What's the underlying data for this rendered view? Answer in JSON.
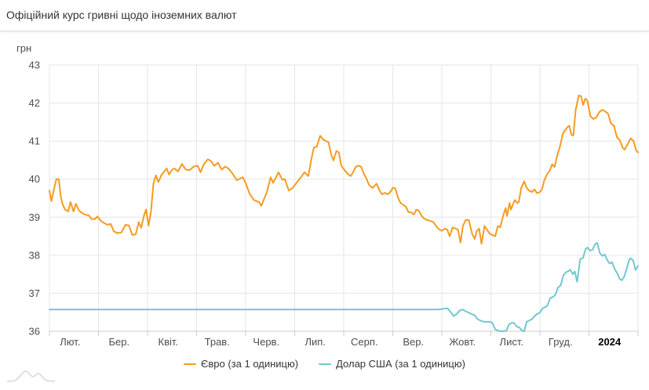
{
  "header": {
    "title": "Офіційний курс гривні щодо іноземних валют"
  },
  "chart_data": {
    "type": "line",
    "title": "Офіційний курс гривні щодо іноземних валют",
    "grid": true,
    "legend_position": "bottom-center",
    "y_axis": {
      "label": "грн",
      "min": 36,
      "max": 43,
      "tick_interval": 1,
      "ticks": [
        36,
        37,
        38,
        39,
        40,
        41,
        42,
        43
      ]
    },
    "x_axis": {
      "labels": [
        "Лют.",
        "Бер.",
        "Квіт.",
        "Трав.",
        "Черв.",
        "Лип.",
        "Серп.",
        "Вер.",
        "Жовт.",
        "Лист.",
        "Груд.",
        "2024"
      ],
      "bold_last": true,
      "x_unit": "months-from-february"
    },
    "series": [
      {
        "name": "Євро (за 1 одиницю)",
        "color": "#f59b22",
        "points": [
          [
            0,
            39.7
          ],
          [
            0.04,
            39.42
          ],
          [
            0.09,
            39.72
          ],
          [
            0.14,
            40.0
          ],
          [
            0.19,
            40.0
          ],
          [
            0.23,
            39.55
          ],
          [
            0.27,
            39.33
          ],
          [
            0.32,
            39.2
          ],
          [
            0.38,
            39.15
          ],
          [
            0.43,
            39.4
          ],
          [
            0.49,
            39.15
          ],
          [
            0.54,
            39.35
          ],
          [
            0.6,
            39.18
          ],
          [
            0.67,
            39.1
          ],
          [
            0.74,
            39.06
          ],
          [
            0.8,
            39.05
          ],
          [
            0.86,
            38.95
          ],
          [
            0.93,
            38.95
          ],
          [
            0.98,
            39.02
          ],
          [
            1.05,
            38.9
          ],
          [
            1.11,
            38.85
          ],
          [
            1.18,
            38.8
          ],
          [
            1.25,
            38.82
          ],
          [
            1.31,
            38.63
          ],
          [
            1.39,
            38.58
          ],
          [
            1.47,
            38.6
          ],
          [
            1.55,
            38.8
          ],
          [
            1.62,
            38.78
          ],
          [
            1.69,
            38.53
          ],
          [
            1.76,
            38.55
          ],
          [
            1.82,
            38.87
          ],
          [
            1.87,
            38.72
          ],
          [
            1.93,
            39.05
          ],
          [
            1.97,
            39.2
          ],
          [
            2.02,
            38.78
          ],
          [
            2.07,
            39.15
          ],
          [
            2.12,
            39.88
          ],
          [
            2.17,
            40.1
          ],
          [
            2.22,
            39.92
          ],
          [
            2.28,
            40.1
          ],
          [
            2.34,
            40.2
          ],
          [
            2.39,
            40.28
          ],
          [
            2.44,
            40.12
          ],
          [
            2.5,
            40.25
          ],
          [
            2.55,
            40.28
          ],
          [
            2.62,
            40.2
          ],
          [
            2.7,
            40.4
          ],
          [
            2.78,
            40.25
          ],
          [
            2.86,
            40.24
          ],
          [
            2.94,
            40.33
          ],
          [
            3.02,
            40.35
          ],
          [
            3.08,
            40.18
          ],
          [
            3.15,
            40.4
          ],
          [
            3.23,
            40.52
          ],
          [
            3.29,
            40.48
          ],
          [
            3.36,
            40.35
          ],
          [
            3.44,
            40.43
          ],
          [
            3.51,
            40.25
          ],
          [
            3.58,
            40.33
          ],
          [
            3.65,
            40.28
          ],
          [
            3.72,
            40.17
          ],
          [
            3.82,
            39.97
          ],
          [
            3.94,
            40.05
          ],
          [
            4.0,
            39.9
          ],
          [
            4.08,
            39.62
          ],
          [
            4.17,
            39.45
          ],
          [
            4.27,
            39.4
          ],
          [
            4.32,
            39.3
          ],
          [
            4.43,
            39.65
          ],
          [
            4.51,
            40.05
          ],
          [
            4.56,
            39.9
          ],
          [
            4.67,
            40.18
          ],
          [
            4.75,
            39.98
          ],
          [
            4.8,
            40.0
          ],
          [
            4.88,
            39.7
          ],
          [
            4.96,
            39.77
          ],
          [
            5.02,
            39.87
          ],
          [
            5.12,
            40.04
          ],
          [
            5.2,
            40.18
          ],
          [
            5.28,
            40.08
          ],
          [
            5.34,
            40.53
          ],
          [
            5.39,
            40.83
          ],
          [
            5.45,
            40.85
          ],
          [
            5.52,
            41.14
          ],
          [
            5.58,
            41.04
          ],
          [
            5.64,
            41.0
          ],
          [
            5.69,
            40.97
          ],
          [
            5.74,
            40.66
          ],
          [
            5.79,
            40.49
          ],
          [
            5.85,
            40.74
          ],
          [
            5.9,
            40.7
          ],
          [
            5.95,
            40.35
          ],
          [
            6.01,
            40.25
          ],
          [
            6.07,
            40.15
          ],
          [
            6.14,
            40.08
          ],
          [
            6.19,
            40.18
          ],
          [
            6.25,
            40.33
          ],
          [
            6.31,
            40.35
          ],
          [
            6.36,
            40.32
          ],
          [
            6.41,
            40.14
          ],
          [
            6.46,
            40.02
          ],
          [
            6.52,
            39.84
          ],
          [
            6.59,
            39.77
          ],
          [
            6.67,
            39.88
          ],
          [
            6.73,
            39.7
          ],
          [
            6.78,
            39.6
          ],
          [
            6.84,
            39.64
          ],
          [
            6.89,
            39.6
          ],
          [
            6.95,
            39.66
          ],
          [
            7.0,
            39.77
          ],
          [
            7.05,
            39.76
          ],
          [
            7.11,
            39.5
          ],
          [
            7.16,
            39.37
          ],
          [
            7.21,
            39.33
          ],
          [
            7.27,
            39.27
          ],
          [
            7.32,
            39.13
          ],
          [
            7.37,
            39.13
          ],
          [
            7.43,
            39.07
          ],
          [
            7.48,
            39.2
          ],
          [
            7.53,
            39.17
          ],
          [
            7.59,
            39.03
          ],
          [
            7.64,
            38.96
          ],
          [
            7.69,
            38.93
          ],
          [
            7.76,
            38.9
          ],
          [
            7.83,
            38.87
          ],
          [
            7.88,
            38.77
          ],
          [
            7.93,
            38.7
          ],
          [
            8.0,
            38.64
          ],
          [
            8.06,
            38.7
          ],
          [
            8.11,
            38.67
          ],
          [
            8.16,
            38.5
          ],
          [
            8.22,
            38.73
          ],
          [
            8.28,
            38.7
          ],
          [
            8.33,
            38.67
          ],
          [
            8.38,
            38.33
          ],
          [
            8.43,
            38.77
          ],
          [
            8.49,
            38.93
          ],
          [
            8.55,
            38.92
          ],
          [
            8.62,
            38.56
          ],
          [
            8.67,
            38.43
          ],
          [
            8.71,
            38.63
          ],
          [
            8.76,
            38.7
          ],
          [
            8.81,
            38.3
          ],
          [
            8.87,
            38.77
          ],
          [
            8.92,
            38.67
          ],
          [
            8.98,
            38.56
          ],
          [
            9.03,
            38.53
          ],
          [
            9.09,
            38.5
          ],
          [
            9.14,
            38.77
          ],
          [
            9.19,
            38.73
          ],
          [
            9.25,
            39.03
          ],
          [
            9.3,
            39.24
          ],
          [
            9.33,
            39.03
          ],
          [
            9.38,
            39.37
          ],
          [
            9.41,
            39.2
          ],
          [
            9.46,
            39.37
          ],
          [
            9.49,
            39.45
          ],
          [
            9.54,
            39.37
          ],
          [
            9.57,
            39.4
          ],
          [
            9.62,
            39.77
          ],
          [
            9.68,
            39.94
          ],
          [
            9.73,
            39.77
          ],
          [
            9.78,
            39.7
          ],
          [
            9.84,
            39.66
          ],
          [
            9.89,
            39.73
          ],
          [
            9.94,
            39.63
          ],
          [
            10.0,
            39.66
          ],
          [
            10.04,
            39.73
          ],
          [
            10.09,
            39.97
          ],
          [
            10.15,
            40.14
          ],
          [
            10.2,
            40.22
          ],
          [
            10.25,
            40.39
          ],
          [
            10.3,
            40.32
          ],
          [
            10.36,
            40.66
          ],
          [
            10.41,
            40.86
          ],
          [
            10.47,
            41.2
          ],
          [
            10.52,
            41.3
          ],
          [
            10.57,
            41.38
          ],
          [
            10.6,
            41.4
          ],
          [
            10.64,
            41.17
          ],
          [
            10.68,
            41.14
          ],
          [
            10.73,
            41.82
          ],
          [
            10.79,
            42.2
          ],
          [
            10.84,
            42.18
          ],
          [
            10.88,
            41.95
          ],
          [
            10.93,
            42.12
          ],
          [
            10.97,
            42.05
          ],
          [
            11.03,
            41.65
          ],
          [
            11.09,
            41.58
          ],
          [
            11.15,
            41.62
          ],
          [
            11.21,
            41.76
          ],
          [
            11.27,
            41.82
          ],
          [
            11.33,
            41.78
          ],
          [
            11.39,
            41.72
          ],
          [
            11.45,
            41.46
          ],
          [
            11.51,
            41.4
          ],
          [
            11.57,
            41.1
          ],
          [
            11.63,
            41.02
          ],
          [
            11.69,
            40.82
          ],
          [
            11.73,
            40.78
          ],
          [
            11.79,
            40.92
          ],
          [
            11.85,
            41.07
          ],
          [
            11.91,
            41.0
          ],
          [
            11.96,
            40.76
          ],
          [
            12.0,
            40.7
          ]
        ]
      },
      {
        "name": "Долар США (за 1 одиницю)",
        "color": "#74c7ce",
        "points": [
          [
            0,
            36.57
          ],
          [
            1,
            36.57
          ],
          [
            2,
            36.57
          ],
          [
            3,
            36.57
          ],
          [
            4,
            36.57
          ],
          [
            5,
            36.57
          ],
          [
            6,
            36.57
          ],
          [
            7,
            36.57
          ],
          [
            7.9,
            36.57
          ],
          [
            8.0,
            36.58
          ],
          [
            8.06,
            36.6
          ],
          [
            8.12,
            36.6
          ],
          [
            8.18,
            36.5
          ],
          [
            8.24,
            36.4
          ],
          [
            8.3,
            36.45
          ],
          [
            8.37,
            36.55
          ],
          [
            8.43,
            36.57
          ],
          [
            8.49,
            36.52
          ],
          [
            8.55,
            36.49
          ],
          [
            8.61,
            36.45
          ],
          [
            8.67,
            36.42
          ],
          [
            8.73,
            36.32
          ],
          [
            8.79,
            36.28
          ],
          [
            8.86,
            36.25
          ],
          [
            8.92,
            36.25
          ],
          [
            8.98,
            36.25
          ],
          [
            9.03,
            36.22
          ],
          [
            9.09,
            36.05
          ],
          [
            9.14,
            36.02
          ],
          [
            9.2,
            36.0
          ],
          [
            9.26,
            36.0
          ],
          [
            9.32,
            36.02
          ],
          [
            9.37,
            36.18
          ],
          [
            9.42,
            36.22
          ],
          [
            9.47,
            36.22
          ],
          [
            9.53,
            36.12
          ],
          [
            9.58,
            36.1
          ],
          [
            9.63,
            36.02
          ],
          [
            9.68,
            36.0
          ],
          [
            9.73,
            36.25
          ],
          [
            9.78,
            36.28
          ],
          [
            9.84,
            36.32
          ],
          [
            9.89,
            36.4
          ],
          [
            9.94,
            36.45
          ],
          [
            10.0,
            36.49
          ],
          [
            10.05,
            36.6
          ],
          [
            10.1,
            36.63
          ],
          [
            10.15,
            36.67
          ],
          [
            10.21,
            36.87
          ],
          [
            10.26,
            36.9
          ],
          [
            10.31,
            36.95
          ],
          [
            10.37,
            37.15
          ],
          [
            10.42,
            37.2
          ],
          [
            10.48,
            37.47
          ],
          [
            10.53,
            37.55
          ],
          [
            10.58,
            37.58
          ],
          [
            10.62,
            37.62
          ],
          [
            10.67,
            37.5
          ],
          [
            10.71,
            37.57
          ],
          [
            10.76,
            37.3
          ],
          [
            10.82,
            37.9
          ],
          [
            10.88,
            37.93
          ],
          [
            10.93,
            38.16
          ],
          [
            10.97,
            38.2
          ],
          [
            11.02,
            38.12
          ],
          [
            11.07,
            38.14
          ],
          [
            11.13,
            38.3
          ],
          [
            11.17,
            38.32
          ],
          [
            11.22,
            38.06
          ],
          [
            11.27,
            37.98
          ],
          [
            11.32,
            38.02
          ],
          [
            11.37,
            37.88
          ],
          [
            11.42,
            37.78
          ],
          [
            11.47,
            37.82
          ],
          [
            11.52,
            37.65
          ],
          [
            11.58,
            37.51
          ],
          [
            11.63,
            37.37
          ],
          [
            11.67,
            37.34
          ],
          [
            11.72,
            37.44
          ],
          [
            11.77,
            37.65
          ],
          [
            11.82,
            37.88
          ],
          [
            11.85,
            37.92
          ],
          [
            11.9,
            37.86
          ],
          [
            11.95,
            37.61
          ],
          [
            12.0,
            37.72
          ]
        ]
      }
    ]
  }
}
